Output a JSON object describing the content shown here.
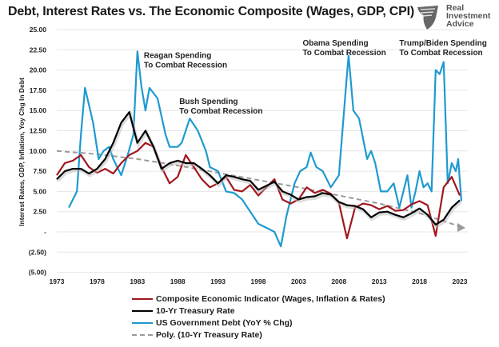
{
  "logo": {
    "line1": "Real",
    "line2": "Investment",
    "line3": "Advice",
    "icon": "eagle-shield-icon"
  },
  "chart_data": {
    "type": "line",
    "title": "Debt, Interest Rates vs. The Economic Composite (Wages, GDP, CPI)",
    "xlabel": "",
    "ylabel": "Interest Rates, GDP, Inflation, Yoy Chg In Debt",
    "xlim": [
      1973,
      2023
    ],
    "ylim": [
      -5,
      25
    ],
    "grid": true,
    "x_ticks": [
      "1973",
      "1978",
      "1983",
      "1988",
      "1993",
      "1998",
      "2003",
      "2008",
      "2013",
      "2018",
      "2023"
    ],
    "y_ticks": [
      "25.00",
      "22.50",
      "20.00",
      "17.50",
      "15.00",
      "12.50",
      "10.00",
      "7.50",
      "5.00",
      "2.50",
      "-",
      "(2.50)",
      "(5.00)"
    ],
    "legend_position": "bottom",
    "colors": {
      "composite": "#a0161e",
      "treasury": "#000000",
      "debt": "#1e9ad0",
      "poly": "#9a9a9a"
    },
    "series": [
      {
        "name": "Composite Economic Indicator (Wages, Inflation & Rates)",
        "key": "composite",
        "points": [
          [
            1973,
            7
          ],
          [
            1974,
            8.5
          ],
          [
            1975,
            8.8
          ],
          [
            1976,
            9.5
          ],
          [
            1977,
            8
          ],
          [
            1978,
            7.3
          ],
          [
            1979,
            7.8
          ],
          [
            1980,
            7.2
          ],
          [
            1981,
            8.5
          ],
          [
            1982,
            9.5
          ],
          [
            1983,
            10
          ],
          [
            1984,
            11
          ],
          [
            1985,
            10.5
          ],
          [
            1986,
            8
          ],
          [
            1987,
            6
          ],
          [
            1988,
            6.8
          ],
          [
            1989,
            9.5
          ],
          [
            1990,
            8
          ],
          [
            1991,
            6.5
          ],
          [
            1992,
            5.5
          ],
          [
            1993,
            6
          ],
          [
            1994,
            6.8
          ],
          [
            1995,
            5.2
          ],
          [
            1996,
            5
          ],
          [
            1997,
            5.8
          ],
          [
            1998,
            4.5
          ],
          [
            1999,
            5.5
          ],
          [
            2000,
            6.5
          ],
          [
            2001,
            4
          ],
          [
            2002,
            3.5
          ],
          [
            2003,
            4
          ],
          [
            2004,
            5.5
          ],
          [
            2005,
            4.8
          ],
          [
            2006,
            5.2
          ],
          [
            2007,
            4.7
          ],
          [
            2008,
            3.6
          ],
          [
            2009,
            -0.8
          ],
          [
            2010,
            3
          ],
          [
            2011,
            3.5
          ],
          [
            2012,
            3.3
          ],
          [
            2013,
            2.8
          ],
          [
            2014,
            3.2
          ],
          [
            2015,
            2.6
          ],
          [
            2016,
            2.7
          ],
          [
            2017,
            3.4
          ],
          [
            2018,
            3.8
          ],
          [
            2019,
            3.3
          ],
          [
            2020,
            -0.5
          ],
          [
            2021,
            5.5
          ],
          [
            2022,
            6.8
          ],
          [
            2023,
            4.5
          ]
        ]
      },
      {
        "name": "10-Yr Treasury Rate",
        "key": "treasury",
        "points": [
          [
            1973,
            6.5
          ],
          [
            1974,
            7.5
          ],
          [
            1975,
            7.8
          ],
          [
            1976,
            7.8
          ],
          [
            1977,
            7.2
          ],
          [
            1978,
            7.8
          ],
          [
            1979,
            9
          ],
          [
            1980,
            11
          ],
          [
            1981,
            13.5
          ],
          [
            1982,
            14.8
          ],
          [
            1983,
            11
          ],
          [
            1984,
            12.5
          ],
          [
            1985,
            10.5
          ],
          [
            1986,
            7.8
          ],
          [
            1987,
            8.5
          ],
          [
            1988,
            8.8
          ],
          [
            1989,
            8.5
          ],
          [
            1990,
            8.5
          ],
          [
            1991,
            7.8
          ],
          [
            1992,
            7
          ],
          [
            1993,
            6
          ],
          [
            1994,
            7
          ],
          [
            1995,
            6.8
          ],
          [
            1996,
            6.5
          ],
          [
            1997,
            6.3
          ],
          [
            1998,
            5.2
          ],
          [
            1999,
            5.7
          ],
          [
            2000,
            6.2
          ],
          [
            2001,
            5
          ],
          [
            2002,
            4.6
          ],
          [
            2003,
            4
          ],
          [
            2004,
            4.3
          ],
          [
            2005,
            4.4
          ],
          [
            2006,
            4.8
          ],
          [
            2007,
            4.6
          ],
          [
            2008,
            3.7
          ],
          [
            2009,
            3.3
          ],
          [
            2010,
            3.2
          ],
          [
            2011,
            2.8
          ],
          [
            2012,
            1.8
          ],
          [
            2013,
            2.4
          ],
          [
            2014,
            2.5
          ],
          [
            2015,
            2.1
          ],
          [
            2016,
            1.8
          ],
          [
            2017,
            2.3
          ],
          [
            2018,
            2.9
          ],
          [
            2019,
            2.1
          ],
          [
            2020,
            0.9
          ],
          [
            2021,
            1.5
          ],
          [
            2022,
            3
          ],
          [
            2023,
            3.9
          ]
        ]
      },
      {
        "name": "US Government Debt (YoY % Chg)",
        "key": "debt",
        "points": [
          [
            1974.5,
            3
          ],
          [
            1975.5,
            5
          ],
          [
            1976,
            12
          ],
          [
            1976.5,
            17.8
          ],
          [
            1977.5,
            13.5
          ],
          [
            1978.2,
            9
          ],
          [
            1978.8,
            10
          ],
          [
            1979.5,
            10.5
          ],
          [
            1980,
            9
          ],
          [
            1981,
            7
          ],
          [
            1981.8,
            9.5
          ],
          [
            1982.5,
            12
          ],
          [
            1983,
            22.3
          ],
          [
            1983.5,
            18
          ],
          [
            1984,
            15
          ],
          [
            1984.5,
            17.8
          ],
          [
            1985.5,
            16.5
          ],
          [
            1986.5,
            12
          ],
          [
            1987,
            10.5
          ],
          [
            1988,
            10.5
          ],
          [
            1988.5,
            11
          ],
          [
            1989.5,
            14
          ],
          [
            1990.5,
            12.5
          ],
          [
            1991.5,
            10
          ],
          [
            1992,
            8
          ],
          [
            1993,
            7.5
          ],
          [
            1994,
            5
          ],
          [
            1995,
            4.8
          ],
          [
            1996,
            4
          ],
          [
            1997,
            2.5
          ],
          [
            1998,
            1
          ],
          [
            1999,
            0.5
          ],
          [
            2000,
            0
          ],
          [
            2000.8,
            -1.8
          ],
          [
            2001.5,
            2
          ],
          [
            2002.5,
            6
          ],
          [
            2003.2,
            7.5
          ],
          [
            2004,
            8
          ],
          [
            2004.5,
            9.8
          ],
          [
            2005.2,
            8
          ],
          [
            2006,
            7.5
          ],
          [
            2007,
            5.5
          ],
          [
            2008,
            7
          ],
          [
            2009,
            19.5
          ],
          [
            2009.2,
            21.8
          ],
          [
            2009.8,
            15
          ],
          [
            2010.5,
            14
          ],
          [
            2011.5,
            9
          ],
          [
            2012,
            10
          ],
          [
            2012.5,
            8.5
          ],
          [
            2013.2,
            5
          ],
          [
            2014,
            5
          ],
          [
            2014.8,
            6
          ],
          [
            2015.5,
            3
          ],
          [
            2016.5,
            7
          ],
          [
            2017,
            3
          ],
          [
            2017.5,
            5
          ],
          [
            2018,
            7.5
          ],
          [
            2018.5,
            5.5
          ],
          [
            2019,
            6
          ],
          [
            2019.5,
            5
          ],
          [
            2020,
            20
          ],
          [
            2020.5,
            19.5
          ],
          [
            2021,
            21
          ],
          [
            2021.5,
            6
          ],
          [
            2022,
            8.5
          ],
          [
            2022.5,
            7.5
          ],
          [
            2022.8,
            9
          ],
          [
            2023.2,
            3.8
          ]
        ]
      },
      {
        "name": "Poly. (10-Yr Treasury Rate)",
        "key": "poly",
        "points": [
          [
            1973,
            10
          ],
          [
            1978,
            9.6
          ],
          [
            1983,
            9
          ],
          [
            1988,
            8.2
          ],
          [
            1993,
            7.3
          ],
          [
            1998,
            6.4
          ],
          [
            2003,
            5.5
          ],
          [
            2008,
            4.5
          ],
          [
            2013,
            3.5
          ],
          [
            2018,
            2.3
          ],
          [
            2023.5,
            0.5
          ]
        ]
      }
    ],
    "annotations": [
      {
        "text": "Reagan Spending\nTo Combat Recession",
        "x": 1983.8,
        "y": 21.5
      },
      {
        "text": "Bush Spending\nTo Combat Recession",
        "x": 1988.2,
        "y": 15.8
      },
      {
        "text": "Obama Spending\nTo Combat Recession",
        "x": 2003.5,
        "y": 23
      },
      {
        "text": "Trump/Biden Spending\nTo Combat Recession",
        "x": 2015.5,
        "y": 23
      }
    ]
  },
  "legend": [
    {
      "label": "Composite Economic Indicator (Wages, Inflation & Rates)",
      "key": "composite"
    },
    {
      "label": "10-Yr Treasury Rate",
      "key": "treasury"
    },
    {
      "label": "US Government Debt (YoY % Chg)",
      "key": "debt"
    },
    {
      "label": "Poly. (10-Yr Treasury Rate)",
      "key": "poly"
    }
  ]
}
